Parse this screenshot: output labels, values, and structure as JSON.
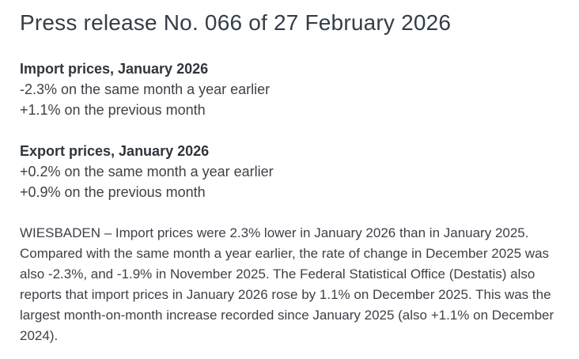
{
  "page": {
    "title": "Press release No. 066 of 27 February 2026"
  },
  "key_figures": [
    {
      "heading": "Import prices, January 2026",
      "lines": [
        "-2.3% on the same month a year earlier",
        "+1.1% on the previous month"
      ]
    },
    {
      "heading": "Export prices, January 2026",
      "lines": [
        "+0.2% on the same month a year earlier",
        "+0.9% on the previous month"
      ]
    }
  ],
  "body": {
    "paragraph": "WIESBADEN – Import prices were 2.3% lower in January 2026 than in January 2025. Compared with the same month a year earlier, the rate of change in December 2025 was also -2.3%, and -1.9% in November 2025. The Federal Statistical Office (Destatis) also reports that import prices in January 2026 rose by 1.1% on December 2025. This was the largest month-on-month increase recorded since January 2025 (also +1.1% on December 2024)."
  },
  "colors": {
    "title": "#333e48",
    "text": "#3d4147",
    "background": "#ffffff"
  }
}
